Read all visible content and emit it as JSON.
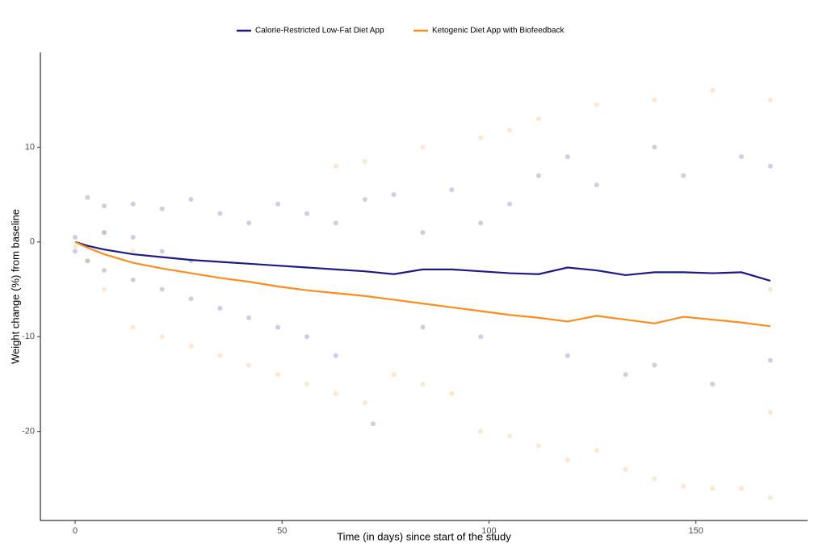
{
  "chart_data": {
    "type": "line",
    "x_label": "Time (in days) since start of the study",
    "y_label": "Weight change (%) from baseline",
    "xlim": [
      -8.4,
      177
    ],
    "ylim": [
      -29.4,
      20
    ],
    "xticks": [
      0,
      50,
      100,
      150
    ],
    "yticks": [
      -20,
      -10,
      0,
      10
    ],
    "grid": false,
    "legend": "top",
    "series": [
      {
        "name": "Calorie-Restricted Low-Fat Diet App",
        "color": "#1a1a8c",
        "x": [
          0,
          3,
          7,
          14,
          21,
          28,
          35,
          42,
          49,
          56,
          63,
          70,
          77,
          84,
          91,
          98,
          105,
          112,
          119,
          126,
          133,
          140,
          147,
          154,
          161,
          168
        ],
        "values": [
          0,
          -0.4,
          -0.8,
          -1.3,
          -1.6,
          -1.9,
          -2.1,
          -2.3,
          -2.5,
          -2.7,
          -2.9,
          -3.1,
          -3.4,
          -2.9,
          -2.9,
          -3.1,
          -3.3,
          -3.4,
          -2.7,
          -3.0,
          -3.5,
          -3.2,
          -3.2,
          -3.3,
          -3.2,
          -4.1
        ],
        "points": {
          "x": [
            0,
            0,
            3,
            3,
            7,
            7,
            7,
            14,
            14,
            14,
            21,
            21,
            21,
            28,
            28,
            28,
            35,
            35,
            42,
            42,
            49,
            49,
            56,
            56,
            63,
            63,
            70,
            72,
            77,
            84,
            84,
            91,
            98,
            98,
            105,
            112,
            119,
            119,
            126,
            133,
            140,
            140,
            147,
            154,
            161,
            168,
            168
          ],
          "y": [
            0.5,
            -1,
            4.7,
            -2,
            3.8,
            -3,
            1,
            4,
            -4,
            0.5,
            3.5,
            -5,
            -1,
            4.5,
            -6,
            -2,
            3,
            -7,
            2,
            -8,
            4,
            -9,
            3,
            -10,
            2,
            -12,
            4.5,
            -19.2,
            5,
            1,
            -9,
            5.5,
            2,
            -10,
            4,
            7,
            9,
            -12,
            6,
            -14,
            10,
            -13,
            7,
            -15,
            9,
            8,
            -12.5
          ]
        }
      },
      {
        "name": "Ketogenic Diet App with Biofeedback",
        "color": "#ff8c1a",
        "x": [
          0,
          3,
          7,
          14,
          21,
          28,
          35,
          42,
          49,
          56,
          63,
          70,
          77,
          84,
          91,
          98,
          105,
          112,
          119,
          126,
          133,
          140,
          147,
          154,
          161,
          168
        ],
        "values": [
          0,
          -0.6,
          -1.3,
          -2.2,
          -2.8,
          -3.3,
          -3.8,
          -4.2,
          -4.7,
          -5.1,
          -5.4,
          -5.7,
          -6.1,
          -6.5,
          -6.9,
          -7.3,
          -7.7,
          -8.0,
          -8.4,
          -7.8,
          -8.2,
          -8.6,
          -7.9,
          -8.2,
          -8.5,
          -8.9
        ],
        "points": {
          "x": [
            0,
            3,
            7,
            7,
            14,
            14,
            21,
            28,
            35,
            42,
            49,
            56,
            63,
            70,
            77,
            84,
            91,
            98,
            105,
            112,
            119,
            126,
            133,
            140,
            147,
            154,
            161,
            168,
            168,
            168,
            63,
            70,
            84,
            98,
            105,
            112,
            126,
            140,
            154,
            168
          ],
          "y": [
            -0.5,
            -2,
            -5,
            1,
            -9,
            -1,
            -10,
            -11,
            -12,
            -13,
            -14,
            -15,
            -16,
            -17,
            -14,
            -15,
            -16,
            -20,
            -20.5,
            -21.5,
            -23,
            -22,
            -24,
            -25,
            -25.8,
            -26,
            -26,
            -27,
            -18,
            -5,
            8,
            8.5,
            10,
            11,
            11.8,
            13,
            14.5,
            15,
            16,
            15
          ]
        }
      }
    ]
  }
}
